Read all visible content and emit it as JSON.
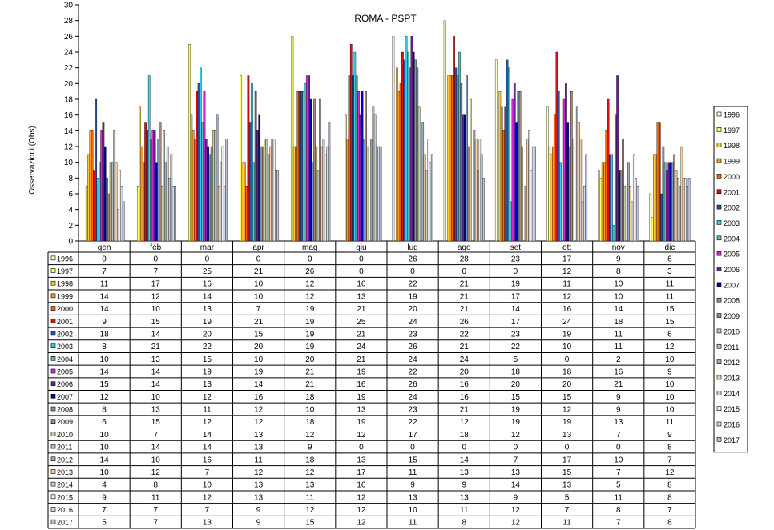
{
  "chart_data": {
    "type": "bar",
    "title": "ROMA  -  PSPT",
    "xlabel": "",
    "ylabel": "Osservazioni (Obs)",
    "ylim": [
      0,
      30
    ],
    "yticks": [
      0,
      2,
      4,
      6,
      8,
      10,
      12,
      14,
      16,
      18,
      20,
      22,
      24,
      26,
      28,
      30
    ],
    "grid": false,
    "legend_position": "right",
    "categories": [
      "gen",
      "feb",
      "mar",
      "apr",
      "mag",
      "giu",
      "lug",
      "ago",
      "set",
      "ott",
      "nov",
      "dic"
    ],
    "series": [
      {
        "name": "1996",
        "color": "#FFFFCC",
        "values": [
          0,
          0,
          0,
          0,
          0,
          0,
          26,
          28,
          23,
          17,
          9,
          6
        ]
      },
      {
        "name": "1997",
        "color": "#FFFF66",
        "values": [
          7,
          7,
          25,
          21,
          26,
          0,
          0,
          0,
          0,
          12,
          8,
          3
        ]
      },
      {
        "name": "1998",
        "color": "#FFCC33",
        "values": [
          11,
          17,
          16,
          10,
          12,
          16,
          22,
          21,
          19,
          11,
          10,
          11
        ]
      },
      {
        "name": "1999",
        "color": "#FF9933",
        "values": [
          14,
          12,
          14,
          10,
          12,
          13,
          19,
          21,
          17,
          12,
          10,
          11
        ]
      },
      {
        "name": "2000",
        "color": "#FF6600",
        "values": [
          14,
          10,
          13,
          7,
          19,
          21,
          20,
          21,
          14,
          16,
          14,
          15
        ]
      },
      {
        "name": "2001",
        "color": "#DD1111",
        "values": [
          9,
          15,
          19,
          21,
          19,
          25,
          24,
          26,
          17,
          24,
          18,
          15
        ]
      },
      {
        "name": "2002",
        "color": "#2255AA",
        "values": [
          18,
          14,
          20,
          15,
          19,
          21,
          23,
          22,
          23,
          19,
          11,
          6
        ]
      },
      {
        "name": "2003",
        "color": "#33CCEE",
        "values": [
          8,
          21,
          22,
          20,
          19,
          24,
          26,
          21,
          22,
          10,
          11,
          12
        ]
      },
      {
        "name": "2004",
        "color": "#55BBBB",
        "values": [
          10,
          13,
          15,
          10,
          20,
          21,
          24,
          24,
          5,
          0,
          2,
          10
        ]
      },
      {
        "name": "2005",
        "color": "#DD22DD",
        "values": [
          14,
          14,
          19,
          19,
          21,
          19,
          22,
          20,
          18,
          18,
          16,
          9
        ]
      },
      {
        "name": "2006",
        "color": "#662299",
        "values": [
          15,
          14,
          13,
          14,
          21,
          16,
          26,
          16,
          20,
          20,
          21,
          10
        ]
      },
      {
        "name": "2007",
        "color": "#0000BB",
        "values": [
          12,
          10,
          12,
          16,
          18,
          19,
          24,
          16,
          15,
          15,
          9,
          10
        ]
      },
      {
        "name": "2008",
        "color": "#7799BB",
        "values": [
          8,
          13,
          11,
          12,
          10,
          13,
          23,
          21,
          19,
          12,
          9,
          10
        ]
      },
      {
        "name": "2009",
        "color": "#AA8877",
        "values": [
          6,
          15,
          12,
          12,
          18,
          19,
          22,
          12,
          19,
          19,
          13,
          11
        ]
      },
      {
        "name": "2010",
        "color": "#CCCC99",
        "values": [
          10,
          7,
          14,
          13,
          12,
          12,
          17,
          18,
          12,
          13,
          7,
          9
        ]
      },
      {
        "name": "2011",
        "color": "#BBBBBB",
        "values": [
          10,
          14,
          14,
          13,
          9,
          0,
          0,
          0,
          0,
          0,
          0,
          8
        ]
      },
      {
        "name": "2012",
        "color": "#99AABB",
        "values": [
          14,
          10,
          16,
          11,
          18,
          13,
          15,
          14,
          7,
          17,
          10,
          7
        ]
      },
      {
        "name": "2013",
        "color": "#FFCC99",
        "values": [
          10,
          12,
          7,
          12,
          12,
          17,
          11,
          13,
          13,
          15,
          7,
          12
        ]
      },
      {
        "name": "2014",
        "color": "#CCCCCC",
        "values": [
          4,
          8,
          10,
          13,
          13,
          16,
          9,
          9,
          14,
          13,
          5,
          8
        ]
      },
      {
        "name": "2015",
        "color": "#EEEEEE",
        "values": [
          9,
          11,
          12,
          13,
          11,
          12,
          13,
          13,
          9,
          5,
          11,
          8
        ]
      },
      {
        "name": "2016",
        "color": "#CCDDEE",
        "values": [
          7,
          7,
          7,
          9,
          12,
          12,
          10,
          11,
          12,
          7,
          8,
          7
        ]
      },
      {
        "name": "2017",
        "color": "#C0C0D8",
        "values": [
          5,
          7,
          13,
          9,
          15,
          12,
          11,
          8,
          12,
          11,
          7,
          8
        ]
      }
    ]
  }
}
